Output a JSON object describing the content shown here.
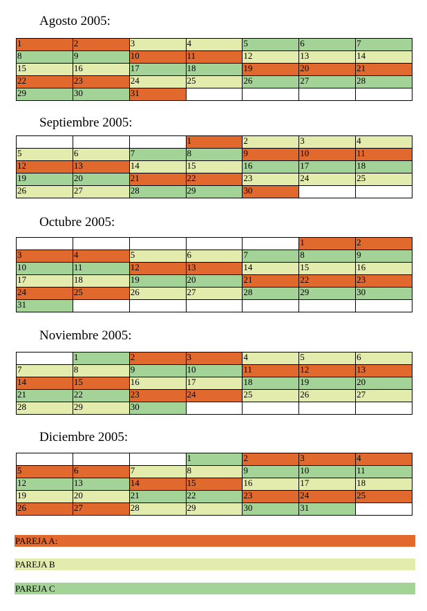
{
  "colors": {
    "A": "#e2692e",
    "B": "#e3ecac",
    "C": "#a3d396",
    "empty": "#ffffff"
  },
  "months": [
    {
      "title": "Agosto 2005:",
      "cols": 7,
      "cells": [
        [
          "1",
          "A"
        ],
        [
          "2",
          "A"
        ],
        [
          "3",
          "B"
        ],
        [
          "4",
          "B"
        ],
        [
          "5",
          "C"
        ],
        [
          "6",
          "C"
        ],
        [
          "7",
          "C"
        ],
        [
          "8",
          "C"
        ],
        [
          "9",
          "C"
        ],
        [
          "10",
          "A"
        ],
        [
          "11",
          "A"
        ],
        [
          "12",
          "B"
        ],
        [
          "13",
          "B"
        ],
        [
          "14",
          "B"
        ],
        [
          "15",
          "B"
        ],
        [
          "16",
          "B"
        ],
        [
          "17",
          "C"
        ],
        [
          "18",
          "C"
        ],
        [
          "19",
          "A"
        ],
        [
          "20",
          "A"
        ],
        [
          "21",
          "A"
        ],
        [
          "22",
          "A"
        ],
        [
          "23",
          "A"
        ],
        [
          "24",
          "B"
        ],
        [
          "25",
          "B"
        ],
        [
          "26",
          "C"
        ],
        [
          "27",
          "C"
        ],
        [
          "28",
          "C"
        ],
        [
          "29",
          "C"
        ],
        [
          "30",
          "C"
        ],
        [
          "31",
          "A"
        ],
        [
          "",
          ""
        ],
        [
          "",
          ""
        ],
        [
          "",
          ""
        ],
        [
          "",
          ""
        ]
      ]
    },
    {
      "title": "Septiembre 2005:",
      "cols": 7,
      "cells": [
        [
          "",
          ""
        ],
        [
          "",
          ""
        ],
        [
          "",
          ""
        ],
        [
          "1",
          "A"
        ],
        [
          "2",
          "B"
        ],
        [
          "3",
          "B"
        ],
        [
          "4",
          "B"
        ],
        [
          "5",
          "B"
        ],
        [
          "6",
          "B"
        ],
        [
          "7",
          "C"
        ],
        [
          "8",
          "C"
        ],
        [
          "9",
          "A"
        ],
        [
          "10",
          "A"
        ],
        [
          "11",
          "A"
        ],
        [
          "12",
          "A"
        ],
        [
          "13",
          "A"
        ],
        [
          "14",
          "B"
        ],
        [
          "15",
          "B"
        ],
        [
          "16",
          "C"
        ],
        [
          "17",
          "C"
        ],
        [
          "18",
          "C"
        ],
        [
          "19",
          "C"
        ],
        [
          "20",
          "C"
        ],
        [
          "21",
          "A"
        ],
        [
          "22",
          "A"
        ],
        [
          "23",
          "B"
        ],
        [
          "24",
          "B"
        ],
        [
          "25",
          "B"
        ],
        [
          "26",
          "B"
        ],
        [
          "27",
          "B"
        ],
        [
          "28",
          "C"
        ],
        [
          "29",
          "C"
        ],
        [
          "30",
          "A"
        ],
        [
          "",
          ""
        ],
        [
          "",
          ""
        ]
      ]
    },
    {
      "title": "Octubre 2005:",
      "cols": 7,
      "cells": [
        [
          "",
          ""
        ],
        [
          "",
          ""
        ],
        [
          "",
          ""
        ],
        [
          "",
          ""
        ],
        [
          "",
          ""
        ],
        [
          "1",
          "A"
        ],
        [
          "2",
          "A"
        ],
        [
          "3",
          "A"
        ],
        [
          "4",
          "A"
        ],
        [
          "5",
          "B"
        ],
        [
          "6",
          "B"
        ],
        [
          "7",
          "C"
        ],
        [
          "8",
          "C"
        ],
        [
          "9",
          "C"
        ],
        [
          "10",
          "C"
        ],
        [
          "11",
          "C"
        ],
        [
          "12",
          "A"
        ],
        [
          "13",
          "A"
        ],
        [
          "14",
          "B"
        ],
        [
          "15",
          "B"
        ],
        [
          "16",
          "B"
        ],
        [
          "17",
          "B"
        ],
        [
          "18",
          "B"
        ],
        [
          "19",
          "C"
        ],
        [
          "20",
          "C"
        ],
        [
          "21",
          "A"
        ],
        [
          "22",
          "A"
        ],
        [
          "23",
          "A"
        ],
        [
          "24",
          "A"
        ],
        [
          "25",
          "A"
        ],
        [
          "26",
          "B"
        ],
        [
          "27",
          "B"
        ],
        [
          "28",
          "C"
        ],
        [
          "29",
          "C"
        ],
        [
          "30",
          "C"
        ],
        [
          "31",
          "C"
        ],
        [
          "",
          ""
        ],
        [
          "",
          ""
        ],
        [
          "",
          ""
        ],
        [
          "",
          ""
        ],
        [
          "",
          ""
        ],
        [
          "",
          ""
        ]
      ]
    },
    {
      "title": "Noviembre 2005:",
      "cols": 7,
      "cells": [
        [
          "",
          ""
        ],
        [
          "1",
          "C"
        ],
        [
          "2",
          "A"
        ],
        [
          "3",
          "A"
        ],
        [
          "4",
          "B"
        ],
        [
          "5",
          "B"
        ],
        [
          "6",
          "B"
        ],
        [
          "7",
          "B"
        ],
        [
          "8",
          "B"
        ],
        [
          "9",
          "C"
        ],
        [
          "10",
          "C"
        ],
        [
          "11",
          "A"
        ],
        [
          "12",
          "A"
        ],
        [
          "13",
          "A"
        ],
        [
          "14",
          "A"
        ],
        [
          "15",
          "A"
        ],
        [
          "16",
          "B"
        ],
        [
          "17",
          "B"
        ],
        [
          "18",
          "C"
        ],
        [
          "19",
          "C"
        ],
        [
          "20",
          "C"
        ],
        [
          "21",
          "C"
        ],
        [
          "22",
          "C"
        ],
        [
          "23",
          "A"
        ],
        [
          "24",
          "A"
        ],
        [
          "25",
          "B"
        ],
        [
          "26",
          "B"
        ],
        [
          "27",
          "B"
        ],
        [
          "28",
          "B"
        ],
        [
          "29",
          "B"
        ],
        [
          "30",
          "C"
        ],
        [
          "",
          ""
        ],
        [
          "",
          ""
        ],
        [
          "",
          ""
        ],
        [
          "",
          ""
        ]
      ]
    },
    {
      "title": "Diciembre 2005:",
      "cols": 7,
      "cells": [
        [
          "",
          ""
        ],
        [
          "",
          ""
        ],
        [
          "",
          ""
        ],
        [
          "1",
          "C"
        ],
        [
          "2",
          "A"
        ],
        [
          "3",
          "A"
        ],
        [
          "4",
          "A"
        ],
        [
          "5",
          "A"
        ],
        [
          "6",
          "A"
        ],
        [
          "7",
          "B"
        ],
        [
          "8",
          "B"
        ],
        [
          "9",
          "C"
        ],
        [
          "10",
          "C"
        ],
        [
          "11",
          "C"
        ],
        [
          "12",
          "C"
        ],
        [
          "13",
          "C"
        ],
        [
          "14",
          "A"
        ],
        [
          "15",
          "A"
        ],
        [
          "16",
          "B"
        ],
        [
          "17",
          "B"
        ],
        [
          "18",
          "B"
        ],
        [
          "19",
          "B"
        ],
        [
          "20",
          "B"
        ],
        [
          "21",
          "C"
        ],
        [
          "22",
          "C"
        ],
        [
          "23",
          "A"
        ],
        [
          "24",
          "A"
        ],
        [
          "25",
          "A"
        ],
        [
          "26",
          "A"
        ],
        [
          "27",
          "A"
        ],
        [
          "28",
          "B"
        ],
        [
          "29",
          "B"
        ],
        [
          "30",
          "C"
        ],
        [
          "31",
          "C"
        ],
        [
          "",
          ""
        ]
      ]
    }
  ],
  "legend": [
    {
      "label": "PAREJA A:",
      "color": "A"
    },
    {
      "label": "PAREJA B",
      "color": "B"
    },
    {
      "label": "PAREJA C",
      "color": "C"
    }
  ]
}
